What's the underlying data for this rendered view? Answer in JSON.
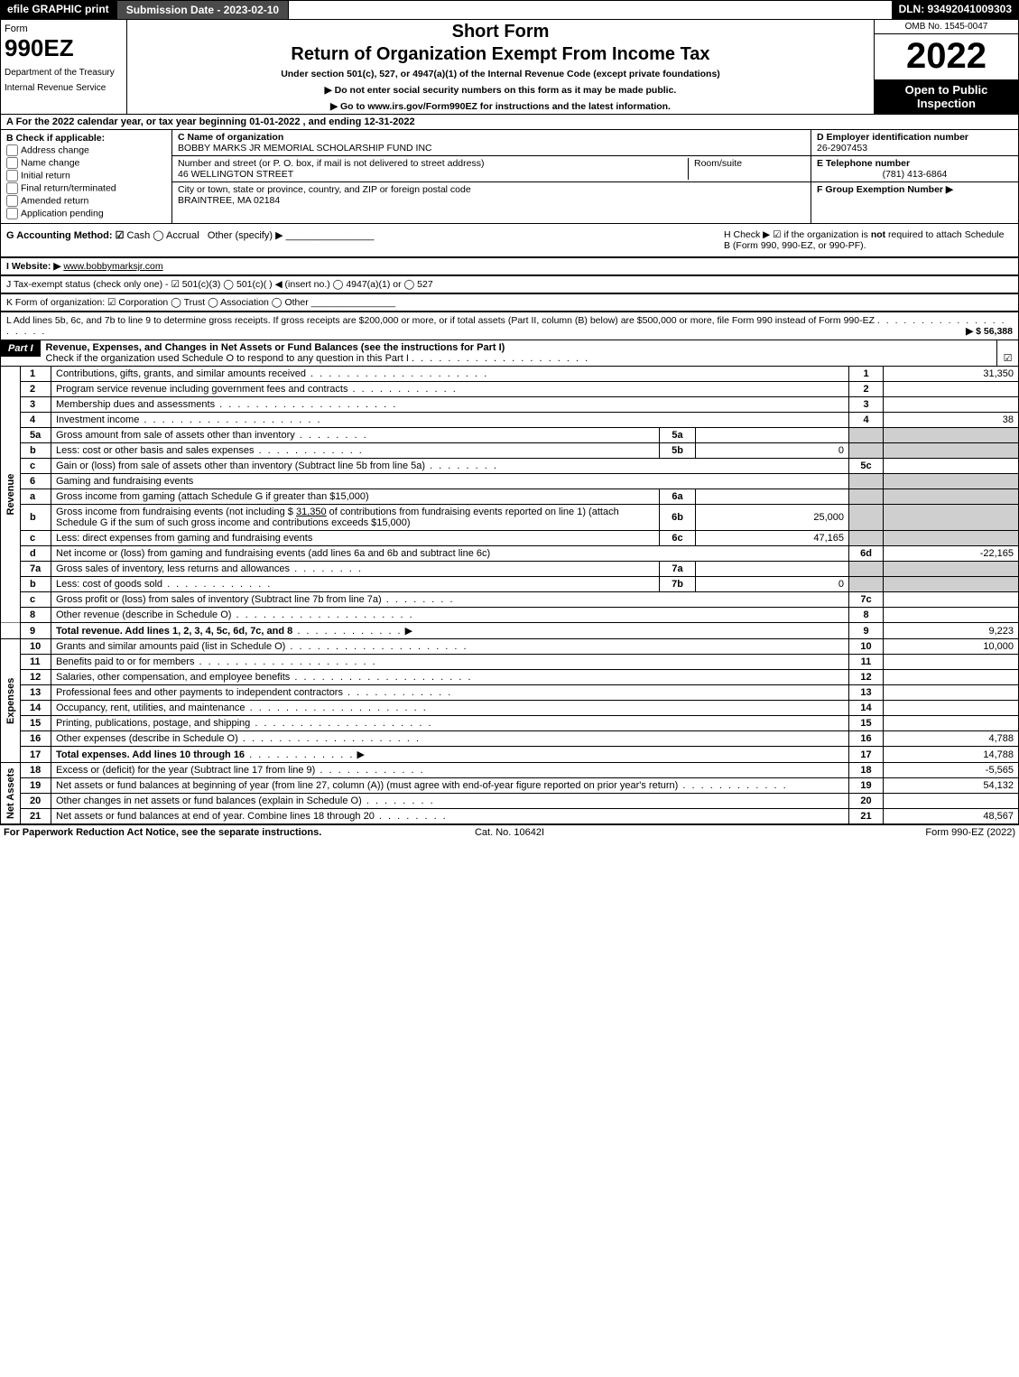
{
  "meta": {
    "efile_label": "efile GRAPHIC print",
    "submission_label": "Submission Date - 2023-02-10",
    "dln": "DLN: 93492041009303",
    "omb": "OMB No. 1545-0047",
    "form_word": "Form",
    "form_number": "990EZ",
    "dept": "Department of the Treasury",
    "irs": "Internal Revenue Service",
    "short_form": "Short Form",
    "return_title": "Return of Organization Exempt From Income Tax",
    "under_section": "Under section 501(c), 527, or 4947(a)(1) of the Internal Revenue Code (except private foundations)",
    "no_ssn": "▶ Do not enter social security numbers on this form as it may be made public.",
    "goto": "▶ Go to www.irs.gov/Form990EZ for instructions and the latest information.",
    "year": "2022",
    "open_public": "Open to Public Inspection"
  },
  "section_a": "A  For the 2022 calendar year, or tax year beginning 01-01-2022 , and ending 12-31-2022",
  "section_b": {
    "header": "B  Check if applicable:",
    "items": [
      "Address change",
      "Name change",
      "Initial return",
      "Final return/terminated",
      "Amended return",
      "Application pending"
    ]
  },
  "section_c": {
    "name_label": "C Name of organization",
    "org_name": "BOBBY MARKS JR MEMORIAL SCHOLARSHIP FUND INC",
    "addr_label": "Number and street (or P. O. box, if mail is not delivered to street address)",
    "street": "46 WELLINGTON STREET",
    "room_label": "Room/suite",
    "city_label": "City or town, state or province, country, and ZIP or foreign postal code",
    "city": "BRAINTREE, MA  02184"
  },
  "section_d": {
    "ein_label": "D Employer identification number",
    "ein": "26-2907453",
    "phone_label": "E Telephone number",
    "phone": "(781) 413-6864",
    "group_label": "F Group Exemption Number   ▶"
  },
  "section_g": {
    "label": "G Accounting Method:",
    "cash": "Cash",
    "accrual": "Accrual",
    "other": "Other (specify) ▶"
  },
  "section_h": {
    "text1": "H  Check ▶ ☑ if the organization is ",
    "not": "not",
    "text2": " required to attach Schedule B (Form 990, 990-EZ, or 990-PF)."
  },
  "section_i": {
    "label": "I Website: ▶",
    "value": "www.bobbymarksjr.com"
  },
  "section_j": "J Tax-exempt status (check only one) - ☑ 501(c)(3)  ◯ 501(c)(  ) ◀ (insert no.)  ◯ 4947(a)(1) or  ◯ 527",
  "section_k": "K Form of organization:  ☑ Corporation  ◯ Trust  ◯ Association  ◯ Other",
  "section_l": {
    "text": "L Add lines 5b, 6c, and 7b to line 9 to determine gross receipts. If gross receipts are $200,000 or more, or if total assets (Part II, column (B) below) are $500,000 or more, file Form 990 instead of Form 990-EZ",
    "amount": "▶ $ 56,388"
  },
  "part1": {
    "label": "Part I",
    "title": "Revenue, Expenses, and Changes in Net Assets or Fund Balances (see the instructions for Part I)",
    "check_line": "Check if the organization used Schedule O to respond to any question in this Part I",
    "checked": "☑"
  },
  "vert": {
    "revenue": "Revenue",
    "expenses": "Expenses",
    "netassets": "Net Assets"
  },
  "lines": {
    "l1": {
      "n": "1",
      "d": "Contributions, gifts, grants, and similar amounts received",
      "r": "1",
      "v": "31,350"
    },
    "l2": {
      "n": "2",
      "d": "Program service revenue including government fees and contracts",
      "r": "2",
      "v": ""
    },
    "l3": {
      "n": "3",
      "d": "Membership dues and assessments",
      "r": "3",
      "v": ""
    },
    "l4": {
      "n": "4",
      "d": "Investment income",
      "r": "4",
      "v": "38"
    },
    "l5a": {
      "n": "5a",
      "d": "Gross amount from sale of assets other than inventory",
      "sc": "5a",
      "sv": ""
    },
    "l5b": {
      "n": "b",
      "d": "Less: cost or other basis and sales expenses",
      "sc": "5b",
      "sv": "0"
    },
    "l5c": {
      "n": "c",
      "d": "Gain or (loss) from sale of assets other than inventory (Subtract line 5b from line 5a)",
      "r": "5c",
      "v": ""
    },
    "l6": {
      "n": "6",
      "d": "Gaming and fundraising events"
    },
    "l6a": {
      "n": "a",
      "d": "Gross income from gaming (attach Schedule G if greater than $15,000)",
      "sc": "6a",
      "sv": ""
    },
    "l6b": {
      "n": "b",
      "d1": "Gross income from fundraising events (not including $ ",
      "amt": "31,350",
      "d2": " of contributions from fundraising events reported on line 1) (attach Schedule G if the sum of such gross income and contributions exceeds $15,000)",
      "sc": "6b",
      "sv": "25,000"
    },
    "l6c": {
      "n": "c",
      "d": "Less: direct expenses from gaming and fundraising events",
      "sc": "6c",
      "sv": "47,165"
    },
    "l6d": {
      "n": "d",
      "d": "Net income or (loss) from gaming and fundraising events (add lines 6a and 6b and subtract line 6c)",
      "r": "6d",
      "v": "-22,165"
    },
    "l7a": {
      "n": "7a",
      "d": "Gross sales of inventory, less returns and allowances",
      "sc": "7a",
      "sv": ""
    },
    "l7b": {
      "n": "b",
      "d": "Less: cost of goods sold",
      "sc": "7b",
      "sv": "0"
    },
    "l7c": {
      "n": "c",
      "d": "Gross profit or (loss) from sales of inventory (Subtract line 7b from line 7a)",
      "r": "7c",
      "v": ""
    },
    "l8": {
      "n": "8",
      "d": "Other revenue (describe in Schedule O)",
      "r": "8",
      "v": ""
    },
    "l9": {
      "n": "9",
      "d": "Total revenue. Add lines 1, 2, 3, 4, 5c, 6d, 7c, and 8",
      "r": "9",
      "v": "9,223"
    },
    "l10": {
      "n": "10",
      "d": "Grants and similar amounts paid (list in Schedule O)",
      "r": "10",
      "v": "10,000"
    },
    "l11": {
      "n": "11",
      "d": "Benefits paid to or for members",
      "r": "11",
      "v": ""
    },
    "l12": {
      "n": "12",
      "d": "Salaries, other compensation, and employee benefits",
      "r": "12",
      "v": ""
    },
    "l13": {
      "n": "13",
      "d": "Professional fees and other payments to independent contractors",
      "r": "13",
      "v": ""
    },
    "l14": {
      "n": "14",
      "d": "Occupancy, rent, utilities, and maintenance",
      "r": "14",
      "v": ""
    },
    "l15": {
      "n": "15",
      "d": "Printing, publications, postage, and shipping",
      "r": "15",
      "v": ""
    },
    "l16": {
      "n": "16",
      "d": "Other expenses (describe in Schedule O)",
      "r": "16",
      "v": "4,788"
    },
    "l17": {
      "n": "17",
      "d": "Total expenses. Add lines 10 through 16",
      "r": "17",
      "v": "14,788"
    },
    "l18": {
      "n": "18",
      "d": "Excess or (deficit) for the year (Subtract line 17 from line 9)",
      "r": "18",
      "v": "-5,565"
    },
    "l19": {
      "n": "19",
      "d": "Net assets or fund balances at beginning of year (from line 27, column (A)) (must agree with end-of-year figure reported on prior year's return)",
      "r": "19",
      "v": "54,132"
    },
    "l20": {
      "n": "20",
      "d": "Other changes in net assets or fund balances (explain in Schedule O)",
      "r": "20",
      "v": ""
    },
    "l21": {
      "n": "21",
      "d": "Net assets or fund balances at end of year. Combine lines 18 through 20",
      "r": "21",
      "v": "48,567"
    }
  },
  "footer": {
    "left": "For Paperwork Reduction Act Notice, see the separate instructions.",
    "mid": "Cat. No. 10642I",
    "right": "Form 990-EZ (2022)"
  },
  "style": {
    "colors": {
      "black": "#000000",
      "white": "#ffffff",
      "darkgray": "#4a4a4a",
      "shade": "#cfcfcf"
    },
    "fonts": {
      "base_size": 11,
      "title_size": 20,
      "year_size": 40,
      "formnum_size": 26
    }
  }
}
